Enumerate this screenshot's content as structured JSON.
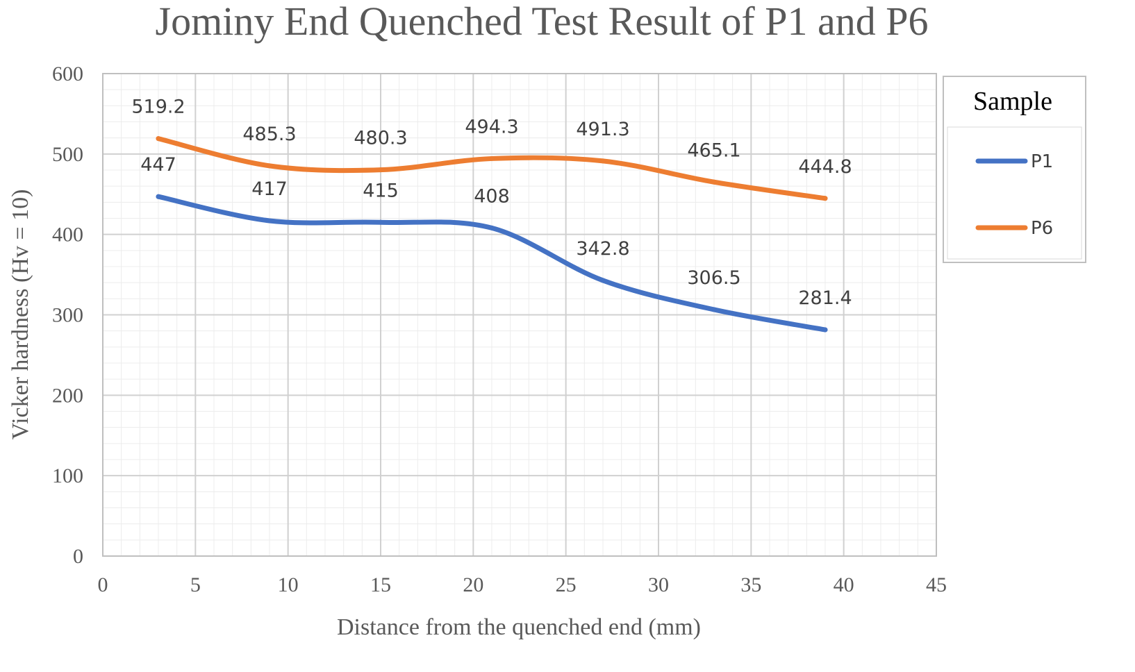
{
  "chart_data": {
    "type": "line",
    "title": "Jominy End Quenched Test Result of P1 and P6",
    "xlabel": "Distance from the quenched end (mm)",
    "ylabel": "Vicker hardness (Hv = 10)",
    "xlim": [
      0,
      45
    ],
    "ylim": [
      0,
      600
    ],
    "x_ticks": [
      0,
      5,
      10,
      15,
      20,
      25,
      30,
      35,
      40,
      45
    ],
    "y_ticks": [
      0,
      100,
      200,
      300,
      400,
      500,
      600
    ],
    "grid": true,
    "minor_grid": true,
    "smoothed": true,
    "legend": {
      "title": "Sample",
      "position": "right"
    },
    "series": [
      {
        "name": "P1",
        "color": "#4472C4",
        "x": [
          3,
          9,
          15,
          21,
          27,
          33,
          39
        ],
        "y": [
          447,
          417,
          415,
          408,
          342.8,
          306.5,
          281.4
        ],
        "labels": [
          "447",
          "417",
          "415",
          "408",
          "342.8",
          "306.5",
          "281.4"
        ]
      },
      {
        "name": "P6",
        "color": "#ED7D31",
        "x": [
          3,
          9,
          15,
          21,
          27,
          33,
          39
        ],
        "y": [
          519.2,
          485.3,
          480.3,
          494.3,
          491.3,
          465.1,
          444.8
        ],
        "labels": [
          "519.2",
          "485.3",
          "480.3",
          "494.3",
          "491.3",
          "465.1",
          "444.8"
        ]
      }
    ]
  }
}
